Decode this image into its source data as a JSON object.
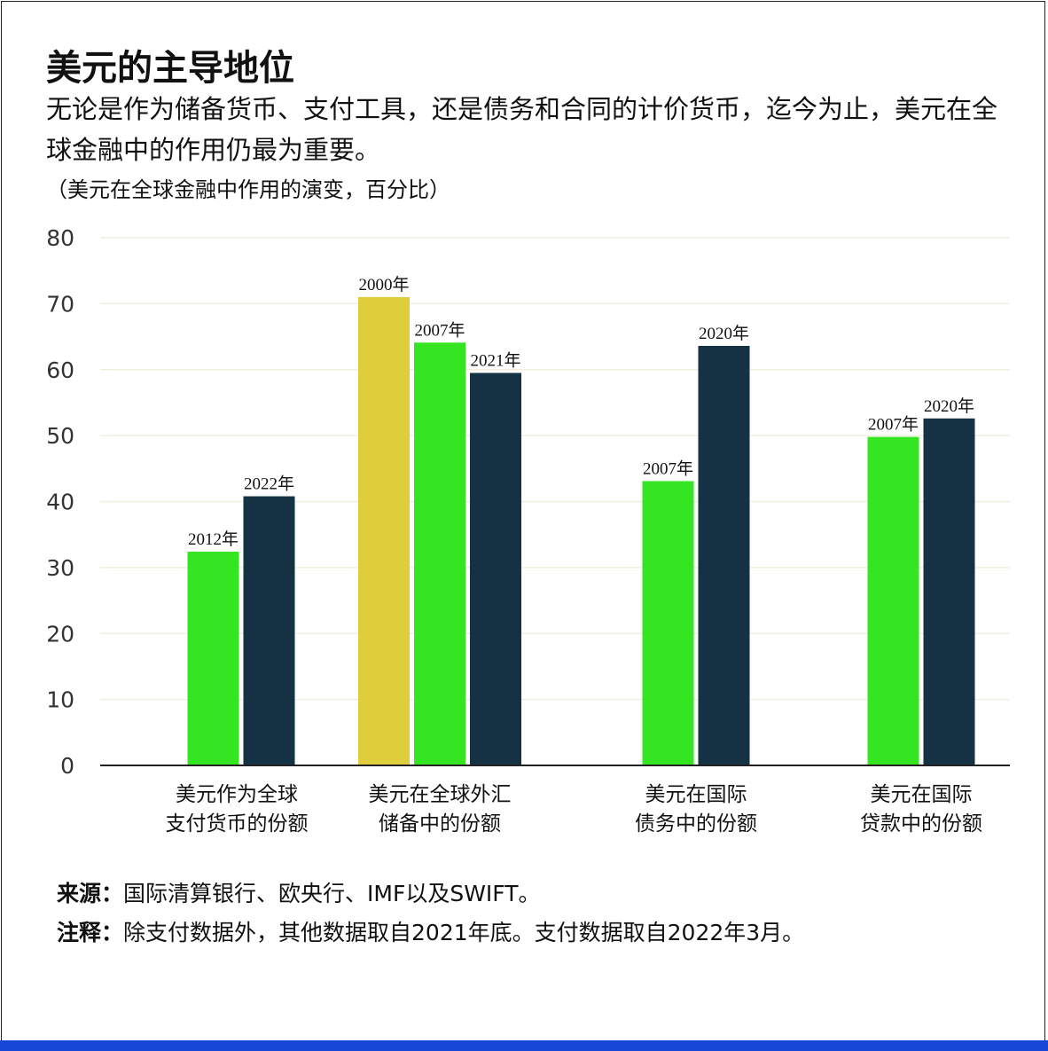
{
  "title": "美元的主导地位",
  "subtitle": "无论是作为储备货币、支付工具，还是债务和合同的计价货币，迄今为止，美元在全球金融中的作用仍最为重要。",
  "unit_note": "（美元在全球金融中作用的演变，百分比）",
  "source": {
    "label": "来源：",
    "text": "国际清算银行、欧央行、IMF以及SWIFT。"
  },
  "note": {
    "label": "注释：",
    "text": "除支付数据外，其他数据取自2021年底。支付数据取自2022年3月。"
  },
  "colors": {
    "gold": "#e0cd3b",
    "green": "#35e521",
    "navy": "#143243",
    "accent_bar": "#1747d6",
    "grid": "#efefdc"
  },
  "chart_data": {
    "type": "bar",
    "ylim": [
      0,
      80
    ],
    "yticks": [
      0,
      10,
      20,
      30,
      40,
      50,
      60,
      70,
      80
    ],
    "grid": true,
    "legend": "none",
    "groups": [
      {
        "category": [
          "美元作为全球",
          "支付货币的份额"
        ],
        "bars": [
          {
            "label": "2012年",
            "value": 32.4,
            "color": "green"
          },
          {
            "label": "2022年",
            "value": 40.8,
            "color": "navy"
          }
        ]
      },
      {
        "category": [
          "美元在全球外汇",
          "储备中的份额"
        ],
        "bars": [
          {
            "label": "2000年",
            "value": 71.0,
            "color": "gold"
          },
          {
            "label": "2007年",
            "value": 64.1,
            "color": "green"
          },
          {
            "label": "2021年",
            "value": 59.5,
            "color": "navy"
          }
        ]
      },
      {
        "category": [
          "美元在国际",
          "债务中的份额"
        ],
        "bars": [
          {
            "label": "2007年",
            "value": 43.1,
            "color": "green"
          },
          {
            "label": "2020年",
            "value": 63.6,
            "color": "navy"
          }
        ]
      },
      {
        "category": [
          "美元在国际",
          "贷款中的份额"
        ],
        "bars": [
          {
            "label": "2007年",
            "value": 49.8,
            "color": "green"
          },
          {
            "label": "2020年",
            "value": 52.6,
            "color": "navy"
          }
        ]
      }
    ]
  }
}
